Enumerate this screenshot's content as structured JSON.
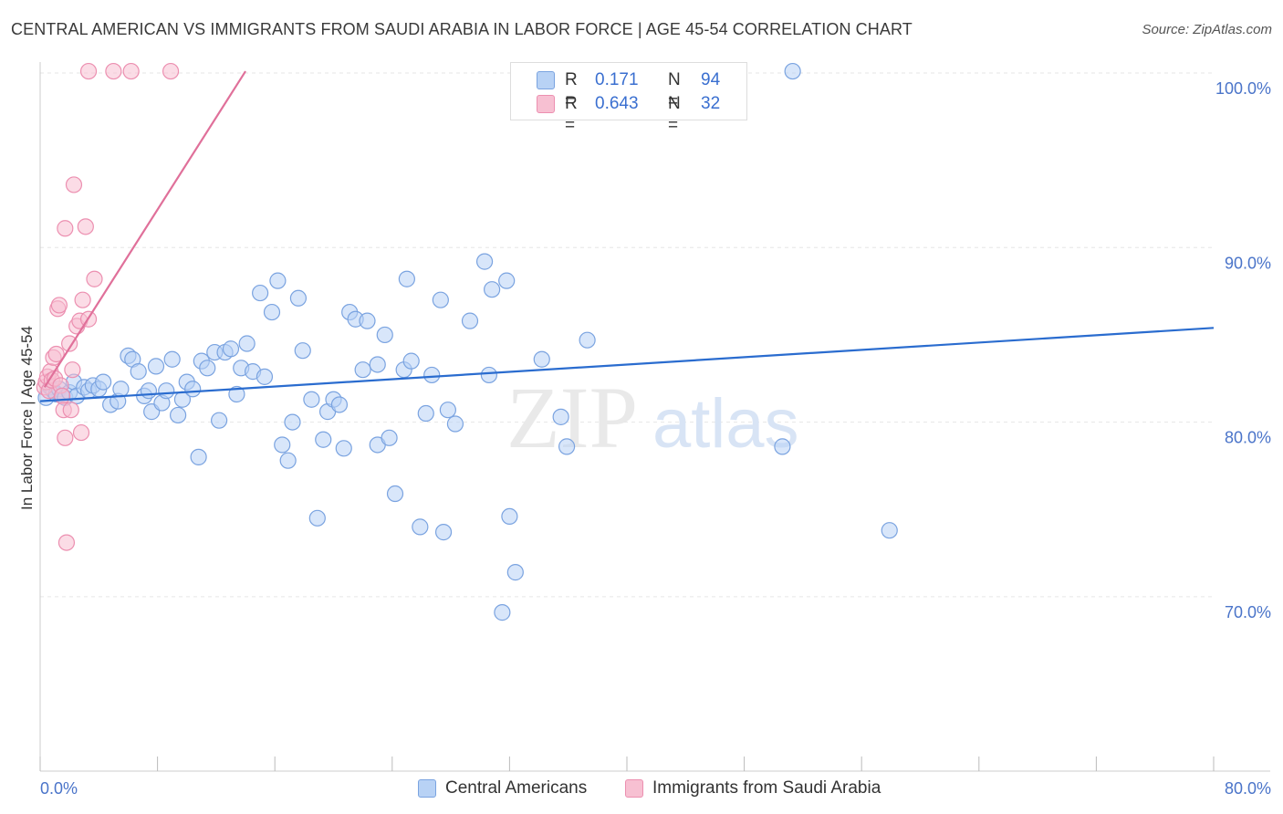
{
  "title": "CENTRAL AMERICAN VS IMMIGRANTS FROM SAUDI ARABIA IN LABOR FORCE | AGE 45-54 CORRELATION CHART",
  "source": "Source: ZipAtlas.com",
  "watermark": {
    "zip": "ZIP",
    "atlas": "atlas"
  },
  "colors": {
    "blue_fill": "#b8d2f5",
    "blue_stroke": "#7aa3e0",
    "blue_line": "#2a6ccf",
    "pink_fill": "#f7c0d2",
    "pink_stroke": "#ec8fb0",
    "pink_line": "#e0709a",
    "axis_text": "#4a74c9",
    "grid": "#e6e6e6"
  },
  "legend": {
    "rows": [
      {
        "r_label": "R =",
        "r_value": "0.171",
        "n_label": "N =",
        "n_value": "94"
      },
      {
        "r_label": "R =",
        "r_value": "0.643",
        "n_label": "N =",
        "n_value": "32"
      }
    ]
  },
  "chart_data": {
    "type": "scatter",
    "title": "CENTRAL AMERICAN VS IMMIGRANTS FROM SAUDI ARABIA IN LABOR FORCE | AGE 45-54 CORRELATION CHART",
    "xlabel": "",
    "ylabel": "In Labor Force | Age 45-54",
    "xlim": [
      0,
      80
    ],
    "ylim": [
      60,
      100.9
    ],
    "x_tick_labels": [
      {
        "value": 0,
        "label": "0.0%"
      },
      {
        "value": 80,
        "label": "80.0%"
      }
    ],
    "y_tick_labels": [
      {
        "value": 100,
        "label": "100.0%"
      },
      {
        "value": 90,
        "label": "90.0%"
      },
      {
        "value": 80,
        "label": "80.0%"
      },
      {
        "value": 70,
        "label": "70.0%"
      }
    ],
    "grid": "horizontal dashed",
    "legend_position": "bottom",
    "series": [
      {
        "name": "Central Americans",
        "color": "#b8d2f5",
        "trend": {
          "x": [
            0,
            80
          ],
          "y": [
            81.2,
            85.4
          ]
        },
        "points": [
          [
            0.4,
            81.4
          ],
          [
            0.7,
            82.0
          ],
          [
            0.9,
            81.8
          ],
          [
            1.1,
            81.6
          ],
          [
            1.3,
            81.9
          ],
          [
            1.5,
            81.5
          ],
          [
            1.7,
            81.4
          ],
          [
            2.0,
            81.7
          ],
          [
            2.3,
            82.3
          ],
          [
            2.5,
            81.5
          ],
          [
            3.0,
            82.0
          ],
          [
            3.3,
            81.8
          ],
          [
            3.6,
            82.1
          ],
          [
            4.0,
            81.9
          ],
          [
            4.3,
            82.3
          ],
          [
            4.8,
            81.0
          ],
          [
            5.3,
            81.2
          ],
          [
            5.5,
            81.9
          ],
          [
            6.0,
            83.8
          ],
          [
            6.3,
            83.6
          ],
          [
            6.7,
            82.9
          ],
          [
            7.1,
            81.5
          ],
          [
            7.4,
            81.8
          ],
          [
            7.6,
            80.6
          ],
          [
            7.9,
            83.2
          ],
          [
            8.3,
            81.1
          ],
          [
            8.6,
            81.8
          ],
          [
            9.0,
            83.6
          ],
          [
            9.4,
            80.4
          ],
          [
            9.7,
            81.3
          ],
          [
            10.0,
            82.3
          ],
          [
            10.4,
            81.9
          ],
          [
            10.8,
            78.0
          ],
          [
            11.0,
            83.5
          ],
          [
            11.4,
            83.1
          ],
          [
            11.9,
            84.0
          ],
          [
            12.2,
            80.1
          ],
          [
            12.6,
            84.0
          ],
          [
            13.0,
            84.2
          ],
          [
            13.4,
            81.6
          ],
          [
            13.7,
            83.1
          ],
          [
            14.1,
            84.5
          ],
          [
            14.5,
            82.9
          ],
          [
            15.0,
            87.4
          ],
          [
            15.3,
            82.6
          ],
          [
            15.8,
            86.3
          ],
          [
            16.2,
            88.1
          ],
          [
            16.5,
            78.7
          ],
          [
            16.9,
            77.8
          ],
          [
            17.2,
            80.0
          ],
          [
            17.6,
            87.1
          ],
          [
            17.9,
            84.1
          ],
          [
            18.5,
            81.3
          ],
          [
            18.9,
            74.5
          ],
          [
            19.3,
            79.0
          ],
          [
            19.6,
            80.6
          ],
          [
            20.0,
            81.3
          ],
          [
            20.4,
            81.0
          ],
          [
            20.7,
            78.5
          ],
          [
            21.1,
            86.3
          ],
          [
            21.5,
            85.9
          ],
          [
            22.0,
            83.0
          ],
          [
            22.3,
            85.8
          ],
          [
            23.0,
            83.3
          ],
          [
            23.5,
            85.0
          ],
          [
            23.0,
            78.7
          ],
          [
            23.8,
            79.1
          ],
          [
            24.2,
            75.9
          ],
          [
            24.8,
            83.0
          ],
          [
            25.0,
            88.2
          ],
          [
            25.3,
            83.5
          ],
          [
            26.3,
            80.5
          ],
          [
            25.9,
            74.0
          ],
          [
            26.7,
            82.7
          ],
          [
            27.3,
            87.0
          ],
          [
            27.5,
            73.7
          ],
          [
            27.8,
            80.7
          ],
          [
            28.3,
            79.9
          ],
          [
            29.3,
            85.8
          ],
          [
            30.3,
            89.2
          ],
          [
            30.8,
            87.6
          ],
          [
            30.6,
            82.7
          ],
          [
            31.8,
            88.1
          ],
          [
            32.0,
            74.6
          ],
          [
            32.4,
            71.4
          ],
          [
            31.5,
            69.1
          ],
          [
            34.2,
            83.6
          ],
          [
            35.5,
            80.3
          ],
          [
            35.9,
            78.6
          ],
          [
            37.3,
            84.7
          ],
          [
            43.6,
            100.1
          ],
          [
            51.3,
            100.1
          ],
          [
            50.6,
            78.6
          ],
          [
            57.9,
            73.8
          ]
        ]
      },
      {
        "name": "Immigrants from Saudi Arabia",
        "color": "#f7c0d2",
        "trend": {
          "x": [
            0.3,
            14.0
          ],
          "y": [
            82.0,
            100.1
          ]
        },
        "points": [
          [
            0.3,
            82.0
          ],
          [
            0.4,
            82.3
          ],
          [
            0.5,
            82.6
          ],
          [
            0.6,
            81.8
          ],
          [
            0.7,
            82.9
          ],
          [
            0.8,
            82.4
          ],
          [
            0.9,
            83.7
          ],
          [
            1.0,
            82.5
          ],
          [
            1.1,
            83.9
          ],
          [
            1.2,
            86.5
          ],
          [
            1.3,
            86.7
          ],
          [
            1.4,
            82.1
          ],
          [
            1.5,
            81.5
          ],
          [
            1.6,
            80.7
          ],
          [
            1.7,
            79.1
          ],
          [
            1.7,
            91.1
          ],
          [
            1.8,
            73.1
          ],
          [
            2.0,
            84.5
          ],
          [
            2.1,
            80.7
          ],
          [
            2.2,
            83.0
          ],
          [
            2.3,
            93.6
          ],
          [
            2.5,
            85.5
          ],
          [
            2.7,
            85.8
          ],
          [
            2.8,
            79.4
          ],
          [
            2.9,
            87.0
          ],
          [
            3.1,
            91.2
          ],
          [
            3.3,
            85.9
          ],
          [
            3.7,
            88.2
          ],
          [
            3.3,
            100.1
          ],
          [
            5.0,
            100.1
          ],
          [
            6.2,
            100.1
          ],
          [
            8.9,
            100.1
          ]
        ]
      }
    ]
  },
  "bottom_legend": {
    "items": [
      {
        "label": "Central Americans"
      },
      {
        "label": "Immigrants from Saudi Arabia"
      }
    ]
  }
}
